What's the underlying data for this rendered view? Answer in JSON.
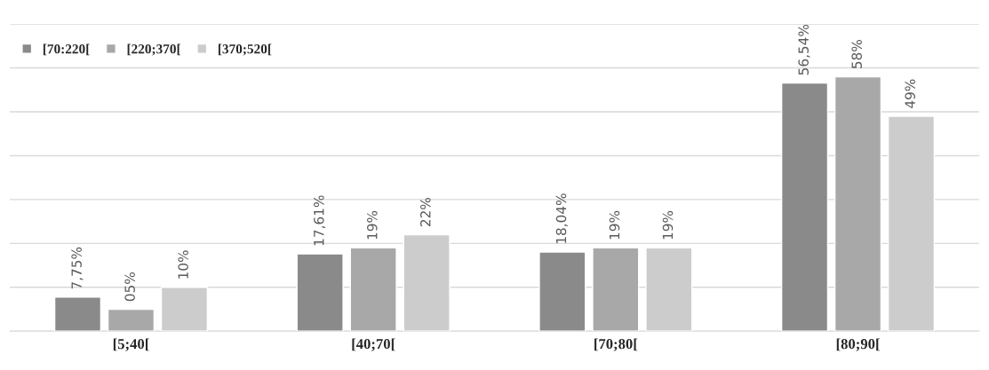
{
  "chart_data": {
    "type": "bar",
    "categories": [
      "[5;40[",
      "[40;70[",
      "[70;80[",
      "[80;90["
    ],
    "series": [
      {
        "name": "[70:220[",
        "color": "#8a8a8a",
        "values": [
          7.75,
          17.61,
          18.04,
          56.54
        ],
        "value_labels": [
          "7,75%",
          "17,61%",
          "18,04%",
          "56,54%"
        ]
      },
      {
        "name": "[220;370[",
        "color": "#a8a8a8",
        "values": [
          5,
          19,
          19,
          58
        ],
        "value_labels": [
          "05%",
          "19%",
          "19%",
          "58%"
        ]
      },
      {
        "name": "[370;520[",
        "color": "#cccccc",
        "values": [
          10,
          22,
          19,
          49
        ],
        "value_labels": [
          "10%",
          "22%",
          "19%",
          "49%"
        ]
      }
    ],
    "ylim": [
      0,
      70
    ],
    "yticks": [
      {
        "value": 0,
        "label": null
      },
      {
        "value": 10,
        "label": null
      },
      {
        "value": 20,
        "label": null
      },
      {
        "value": 30,
        "label": null
      },
      {
        "value": 40,
        "label": null
      },
      {
        "value": 50,
        "label": null
      },
      {
        "value": 60,
        "label": null
      },
      {
        "value": 70,
        "label": null
      }
    ],
    "tick_labels": "x",
    "grid": "y",
    "legend": "top left"
  }
}
